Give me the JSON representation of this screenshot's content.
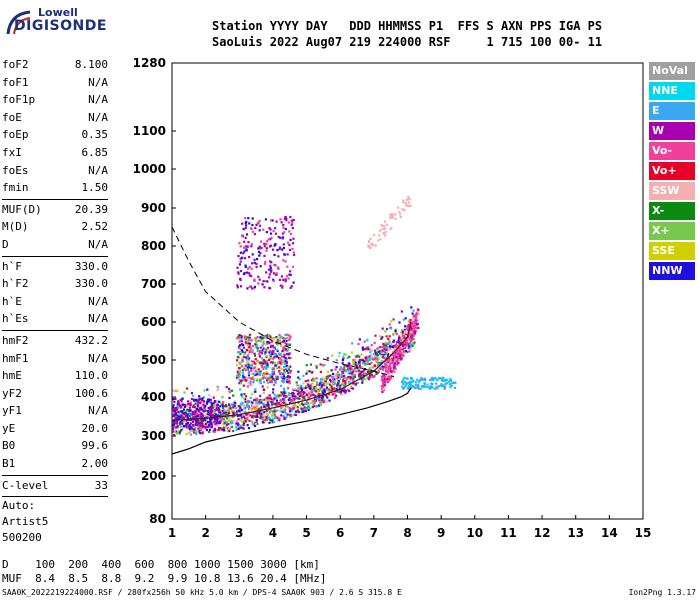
{
  "logo": {
    "line1": "Lowell",
    "line2": "DIGISONDE"
  },
  "header": {
    "line1": "Station YYYY DAY   DDD HHMMSS P1  FFS S AXN PPS IGA PS",
    "line2": "SaoLuis 2022 Aug07 219 224000 RSF     1 715 100 00- 11"
  },
  "params": {
    "group1": [
      {
        "name": "foF2",
        "value": "8.100"
      },
      {
        "name": "foF1",
        "value": "N/A"
      },
      {
        "name": "foF1p",
        "value": "N/A"
      },
      {
        "name": "foE",
        "value": "N/A"
      },
      {
        "name": "foEp",
        "value": "0.35"
      },
      {
        "name": "fxI",
        "value": "6.85"
      },
      {
        "name": "foEs",
        "value": "N/A"
      },
      {
        "name": "fmin",
        "value": "1.50"
      }
    ],
    "group2": [
      {
        "name": "MUF(D)",
        "value": "20.39"
      },
      {
        "name": "M(D)",
        "value": "2.52"
      },
      {
        "name": "D",
        "value": "N/A"
      }
    ],
    "group3": [
      {
        "name": "h`F",
        "value": "330.0"
      },
      {
        "name": "h`F2",
        "value": "330.0"
      },
      {
        "name": "h`E",
        "value": "N/A"
      },
      {
        "name": "h`Es",
        "value": "N/A"
      }
    ],
    "group4": [
      {
        "name": "hmF2",
        "value": "432.2"
      },
      {
        "name": "hmF1",
        "value": "N/A"
      },
      {
        "name": "hmE",
        "value": "110.0"
      },
      {
        "name": "yF2",
        "value": "100.6"
      },
      {
        "name": "yF1",
        "value": "N/A"
      },
      {
        "name": "yE",
        "value": "20.0"
      },
      {
        "name": "B0",
        "value": "99.6"
      },
      {
        "name": "B1",
        "value": "2.00"
      }
    ],
    "group5": [
      {
        "name": "C-level",
        "value": "33"
      }
    ],
    "auto": [
      "Auto:",
      "Artist5",
      "500200"
    ]
  },
  "legend": [
    {
      "label": "NoVal",
      "color": "#a0a0a0"
    },
    {
      "label": "NNE",
      "color": "#00d8f0"
    },
    {
      "label": "E",
      "color": "#3aa8f0"
    },
    {
      "label": "W",
      "color": "#a800b0"
    },
    {
      "label": "Vo-",
      "color": "#f0409c"
    },
    {
      "label": "Vo+",
      "color": "#e80028"
    },
    {
      "label": "SSW",
      "color": "#f4b0b0"
    },
    {
      "label": "X-",
      "color": "#0a8a10"
    },
    {
      "label": "X+",
      "color": "#78c850"
    },
    {
      "label": "SSE",
      "color": "#d0d000"
    },
    {
      "label": "NNW",
      "color": "#2010e0"
    }
  ],
  "chart_data": {
    "type": "scatter",
    "x_ticks": [
      1,
      2,
      3,
      4,
      5,
      6,
      7,
      8,
      9,
      10,
      11,
      12,
      13,
      14,
      15
    ],
    "y_ticks": [
      80,
      200,
      300,
      400,
      500,
      600,
      700,
      800,
      900,
      1000,
      1100,
      1280
    ],
    "xlim": [
      1,
      15
    ],
    "ylim": [
      80,
      1280
    ],
    "y_scale": "nonlinear",
    "profile_curve": [
      [
        1,
        255
      ],
      [
        1.5,
        268
      ],
      [
        2,
        285
      ],
      [
        3,
        305
      ],
      [
        4,
        322
      ],
      [
        5,
        338
      ],
      [
        6,
        355
      ],
      [
        6.8,
        372
      ],
      [
        7.4,
        388
      ],
      [
        7.8,
        400
      ],
      [
        8.0,
        410
      ],
      [
        8.1,
        425
      ]
    ],
    "muf_curve": [
      [
        1,
        850
      ],
      [
        1.5,
        760
      ],
      [
        2,
        680
      ],
      [
        3,
        600
      ],
      [
        4,
        550
      ],
      [
        5,
        515
      ],
      [
        6,
        490
      ],
      [
        7,
        470
      ],
      [
        7.6,
        455
      ]
    ],
    "trace_curve": [
      [
        1,
        340
      ],
      [
        2,
        345
      ],
      [
        3,
        355
      ],
      [
        4,
        372
      ],
      [
        5,
        392
      ],
      [
        6,
        420
      ],
      [
        7,
        470
      ],
      [
        7.6,
        520
      ],
      [
        8.0,
        560
      ],
      [
        8.1,
        600
      ]
    ]
  },
  "bottom": {
    "line1": "D    100  200  400  600  800 1000 1500 3000 [km]",
    "line2": "MUF  8.4  8.5  8.8  9.2  9.9 10.8 13.6 20.4 [MHz]"
  },
  "footer": {
    "left": "SAA0K_2022219224000.RSF / 280fx256h 50 kHz 5.0 km / DPS-4 SAA0K 903 / 2.6 S 315.8 E",
    "right": "Ion2Png 1.3.17"
  }
}
